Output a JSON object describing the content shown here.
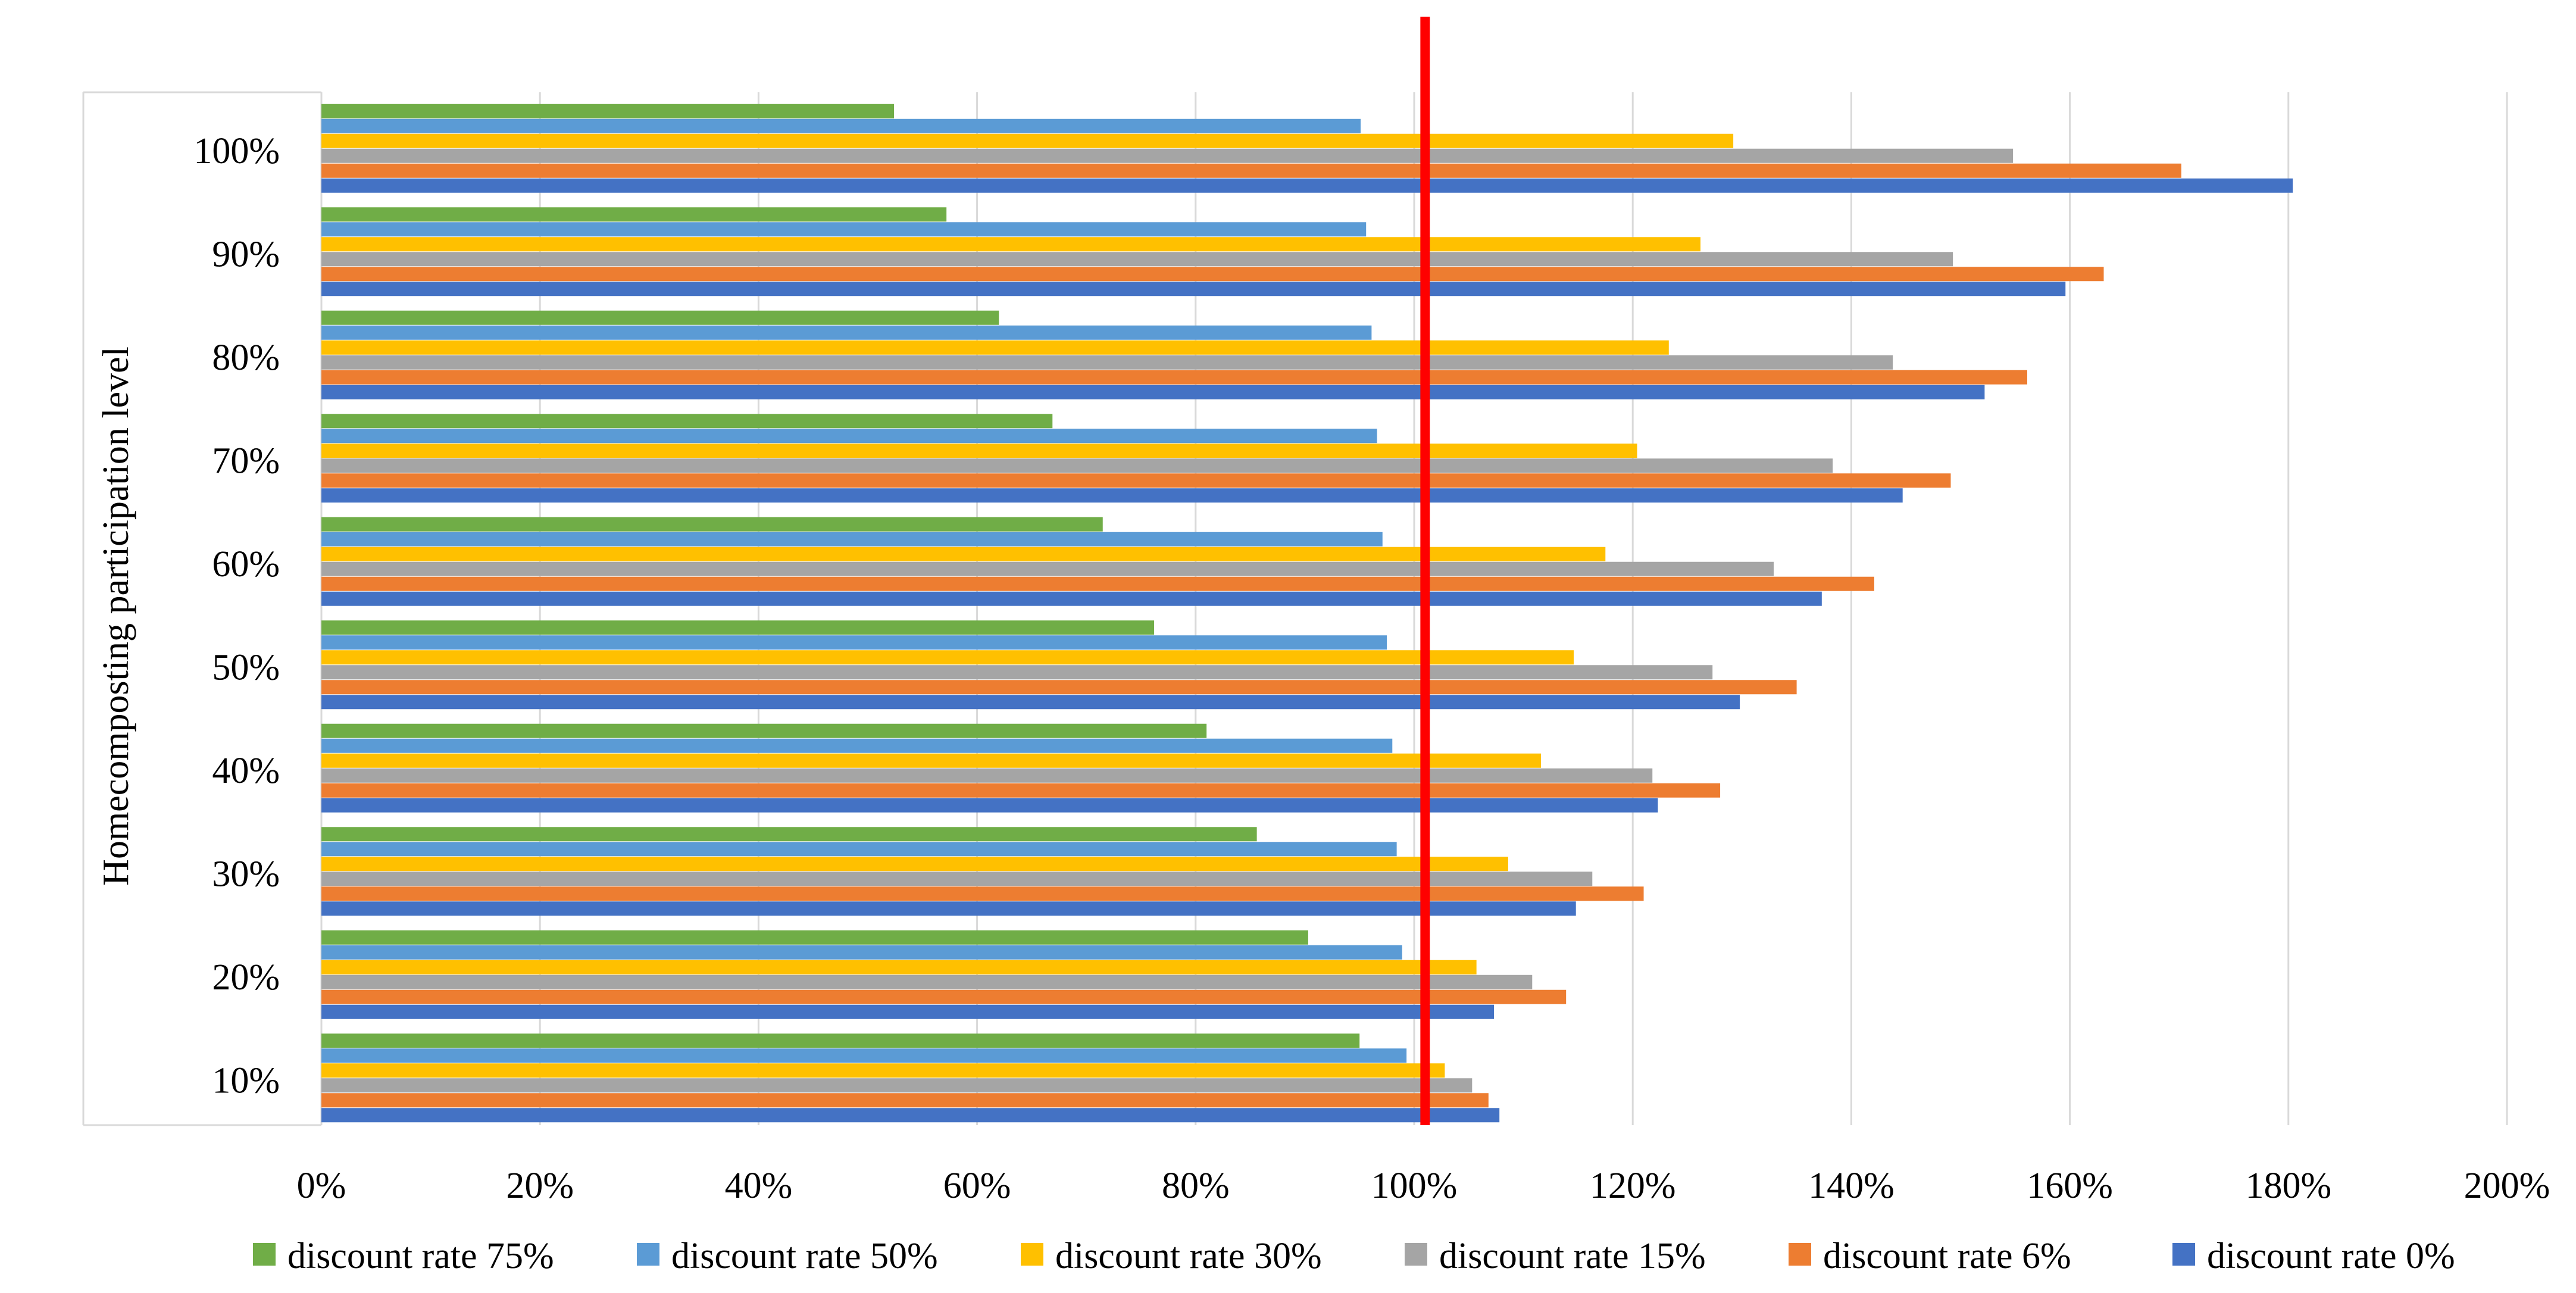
{
  "chart_data": {
    "type": "bar",
    "orientation": "horizontal",
    "title": "",
    "ylabel": "Homecomposting participation level",
    "xlabel": "",
    "categories": [
      "10%",
      "20%",
      "30%",
      "40%",
      "50%",
      "60%",
      "70%",
      "80%",
      "90%",
      "100%"
    ],
    "x_ticks": [
      "0%",
      "20%",
      "40%",
      "60%",
      "80%",
      "100%",
      "120%",
      "140%",
      "160%",
      "180%",
      "200%"
    ],
    "xlim": [
      0,
      200
    ],
    "grid": true,
    "legend_position": "bottom",
    "reference_line": {
      "value": 101,
      "color": "#ff0000"
    },
    "series": [
      {
        "name": "discount rate 75%",
        "color": "#70ad47",
        "values": [
          95,
          90.3,
          85.6,
          81,
          76.2,
          71.5,
          66.9,
          62,
          57.2,
          52.4
        ]
      },
      {
        "name": "discount rate 50%",
        "color": "#5b9bd5",
        "values": [
          99.3,
          98.9,
          98.4,
          98,
          97.5,
          97.1,
          96.6,
          96.1,
          95.6,
          95.1
        ]
      },
      {
        "name": "discount rate 30%",
        "color": "#ffc000",
        "values": [
          102.8,
          105.7,
          108.6,
          111.6,
          114.6,
          117.5,
          120.4,
          123.3,
          126.2,
          129.2
        ]
      },
      {
        "name": "discount rate 15%",
        "color": "#a5a5a5",
        "values": [
          105.3,
          110.8,
          116.3,
          121.8,
          127.3,
          132.9,
          138.3,
          143.8,
          149.3,
          154.8
        ]
      },
      {
        "name": "discount rate 6%",
        "color": "#ed7d31",
        "values": [
          106.8,
          113.9,
          121,
          128,
          135,
          142.1,
          149.1,
          156.1,
          163.1,
          170.2
        ]
      },
      {
        "name": "discount rate  0%",
        "color": "#4472c4",
        "values": [
          107.8,
          107.3,
          114.8,
          122.3,
          129.8,
          137.3,
          144.7,
          152.2,
          159.6,
          180.4
        ]
      }
    ]
  }
}
